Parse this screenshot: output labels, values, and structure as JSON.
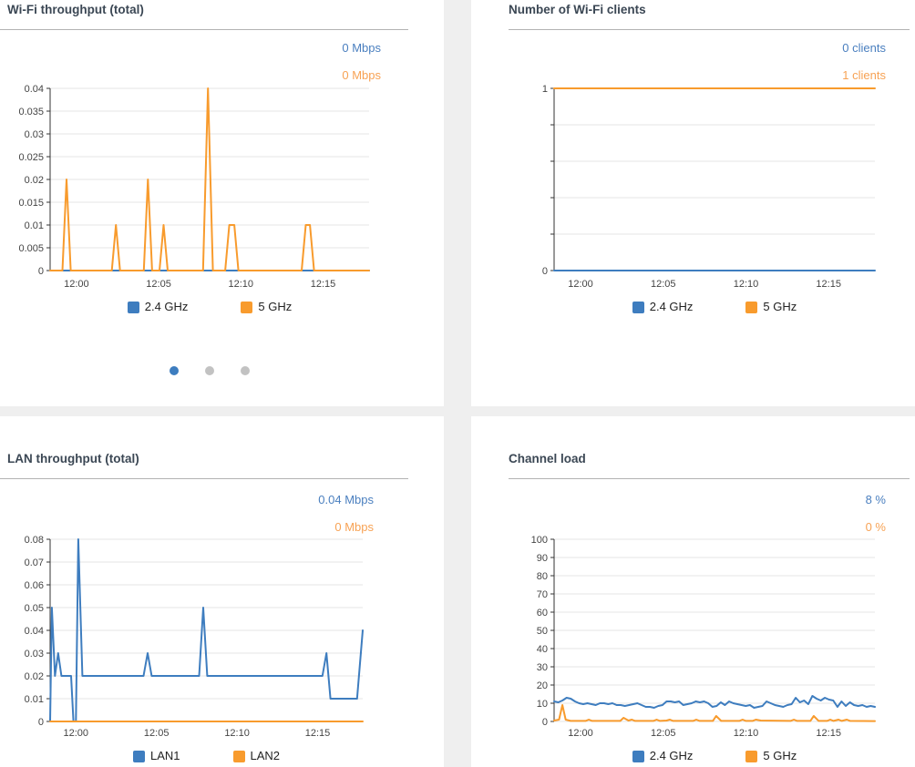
{
  "colors": {
    "page_bg": "#efefef",
    "card_bg": "#ffffff",
    "title": "#3b4754",
    "divider": "#b3b3b3",
    "grid": "#e4e4e4",
    "axis": "#333333",
    "tick_label": "#444444",
    "series_blue": "#3e7dbf",
    "series_orange": "#f89b2d",
    "value_blue": "#4a7fbf",
    "value_orange": "#f7a254",
    "dot_active": "#3d7dbf",
    "dot_inactive": "#c2c2c2"
  },
  "panels": [
    {
      "title": "Wi-Fi throughput (total)",
      "values": [
        {
          "text": "0 Mbps",
          "color": "#4a7fbf"
        },
        {
          "text": "0 Mbps",
          "color": "#f7a254"
        }
      ],
      "legend": [
        "2.4 GHz",
        "5 GHz"
      ],
      "pager": {
        "count": 3,
        "active": 0
      }
    },
    {
      "title": "Number of Wi-Fi clients",
      "values": [
        {
          "text": "0 clients",
          "color": "#4a7fbf"
        },
        {
          "text": "1 clients",
          "color": "#f7a254"
        }
      ],
      "legend": [
        "2.4 GHz",
        "5 GHz"
      ]
    },
    {
      "title": "LAN throughput (total)",
      "values": [
        {
          "text": "0.04 Mbps",
          "color": "#4a7fbf"
        },
        {
          "text": "0 Mbps",
          "color": "#f7a254"
        }
      ],
      "legend": [
        "LAN1",
        "LAN2"
      ]
    },
    {
      "title": "Channel load",
      "values": [
        {
          "text": "8 %",
          "color": "#4a7fbf"
        },
        {
          "text": "0 %",
          "color": "#f7a254"
        }
      ],
      "legend": [
        "2.4 GHz",
        "5 GHz"
      ]
    }
  ],
  "chart_data": [
    {
      "type": "line",
      "title": "Wi-Fi throughput (total)",
      "ylabel": "Mbps",
      "ylim": [
        0,
        0.04
      ],
      "x_range": [
        -1.6,
        17.8
      ],
      "grid": true,
      "y_ticks": [
        {
          "v": 0,
          "label": "0"
        },
        {
          "v": 0.005,
          "label": "0.005"
        },
        {
          "v": 0.01,
          "label": "0.01"
        },
        {
          "v": 0.015,
          "label": "0.015"
        },
        {
          "v": 0.02,
          "label": "0.02"
        },
        {
          "v": 0.025,
          "label": "0.025"
        },
        {
          "v": 0.03,
          "label": "0.03"
        },
        {
          "v": 0.035,
          "label": "0.035"
        },
        {
          "v": 0.04,
          "label": "0.04"
        }
      ],
      "x_ticks": [
        {
          "t": 0,
          "label": "12:00"
        },
        {
          "t": 5,
          "label": "12:05"
        },
        {
          "t": 10,
          "label": "12:10"
        },
        {
          "t": 15,
          "label": "12:15"
        }
      ],
      "series": [
        {
          "name": "2.4 GHz",
          "color": "#3e7dbf",
          "points": [
            [
              -1.6,
              0
            ],
            [
              17.8,
              0
            ]
          ]
        },
        {
          "name": "5 GHz",
          "color": "#f89b2d",
          "points": [
            [
              -1.6,
              0
            ],
            [
              -0.85,
              0
            ],
            [
              -0.6,
              0.02
            ],
            [
              -0.35,
              0
            ],
            [
              2.15,
              0
            ],
            [
              2.4,
              0.01
            ],
            [
              2.65,
              0
            ],
            [
              4.1,
              0
            ],
            [
              4.35,
              0.02
            ],
            [
              4.6,
              0
            ],
            [
              5.05,
              0
            ],
            [
              5.3,
              0.01
            ],
            [
              5.55,
              0
            ],
            [
              7.7,
              0
            ],
            [
              8.0,
              0.04
            ],
            [
              8.3,
              0
            ],
            [
              9.05,
              0
            ],
            [
              9.3,
              0.01
            ],
            [
              9.6,
              0.01
            ],
            [
              9.85,
              0
            ],
            [
              13.7,
              0
            ],
            [
              13.95,
              0.01
            ],
            [
              14.2,
              0.01
            ],
            [
              14.45,
              0
            ],
            [
              17.8,
              0
            ]
          ]
        }
      ]
    },
    {
      "type": "line",
      "title": "Number of Wi-Fi clients",
      "ylabel": "clients",
      "ylim": [
        0,
        1
      ],
      "x_range": [
        -1.6,
        17.8
      ],
      "grid": true,
      "y_ticks": [
        {
          "v": 0,
          "label": "0"
        },
        {
          "v": 1,
          "label": "1"
        }
      ],
      "y_minor": [
        0.2,
        0.4,
        0.6,
        0.8
      ],
      "x_ticks": [
        {
          "t": 0,
          "label": "12:00"
        },
        {
          "t": 5,
          "label": "12:05"
        },
        {
          "t": 10,
          "label": "12:10"
        },
        {
          "t": 15,
          "label": "12:15"
        }
      ],
      "series": [
        {
          "name": "2.4 GHz",
          "color": "#3e7dbf",
          "points": [
            [
              -1.6,
              0
            ],
            [
              17.8,
              0
            ]
          ]
        },
        {
          "name": "5 GHz",
          "color": "#f89b2d",
          "points": [
            [
              -1.6,
              1
            ],
            [
              17.8,
              1
            ]
          ]
        }
      ]
    },
    {
      "type": "line",
      "title": "LAN throughput (total)",
      "ylabel": "Mbps",
      "ylim": [
        0,
        0.08
      ],
      "x_range": [
        -1.6,
        17.8
      ],
      "grid": true,
      "y_ticks": [
        {
          "v": 0,
          "label": "0"
        },
        {
          "v": 0.01,
          "label": "0.01"
        },
        {
          "v": 0.02,
          "label": "0.02"
        },
        {
          "v": 0.03,
          "label": "0.03"
        },
        {
          "v": 0.04,
          "label": "0.04"
        },
        {
          "v": 0.05,
          "label": "0.05"
        },
        {
          "v": 0.06,
          "label": "0.06"
        },
        {
          "v": 0.07,
          "label": "0.07"
        },
        {
          "v": 0.08,
          "label": "0.08"
        }
      ],
      "x_ticks": [
        {
          "t": 0,
          "label": "12:00"
        },
        {
          "t": 5,
          "label": "12:05"
        },
        {
          "t": 10,
          "label": "12:10"
        },
        {
          "t": 15,
          "label": "12:15"
        }
      ],
      "series": [
        {
          "name": "LAN1",
          "color": "#3e7dbf",
          "points": [
            [
              -1.6,
              0
            ],
            [
              -1.49,
              0.05
            ],
            [
              -1.3,
              0.02
            ],
            [
              -1.1,
              0.03
            ],
            [
              -0.9,
              0.02
            ],
            [
              -0.3,
              0.02
            ],
            [
              -0.15,
              0
            ],
            [
              0.0,
              0
            ],
            [
              0.15,
              0.08
            ],
            [
              0.4,
              0.02
            ],
            [
              4.2,
              0.02
            ],
            [
              4.45,
              0.03
            ],
            [
              4.7,
              0.02
            ],
            [
              7.65,
              0.02
            ],
            [
              7.9,
              0.05
            ],
            [
              8.15,
              0.02
            ],
            [
              15.3,
              0.02
            ],
            [
              15.55,
              0.03
            ],
            [
              15.8,
              0.01
            ],
            [
              17.45,
              0.01
            ],
            [
              17.8,
              0.04
            ]
          ]
        },
        {
          "name": "LAN2",
          "color": "#f89b2d",
          "points": [
            [
              -1.6,
              0
            ],
            [
              17.8,
              0
            ]
          ]
        }
      ]
    },
    {
      "type": "line",
      "title": "Channel load",
      "ylabel": "%",
      "ylim": [
        0,
        100
      ],
      "x_range": [
        -1.6,
        17.8
      ],
      "grid": true,
      "y_ticks": [
        {
          "v": 0,
          "label": "0"
        },
        {
          "v": 10,
          "label": "10"
        },
        {
          "v": 20,
          "label": "20"
        },
        {
          "v": 30,
          "label": "30"
        },
        {
          "v": 40,
          "label": "40"
        },
        {
          "v": 50,
          "label": "50"
        },
        {
          "v": 60,
          "label": "60"
        },
        {
          "v": 70,
          "label": "70"
        },
        {
          "v": 80,
          "label": "80"
        },
        {
          "v": 90,
          "label": "90"
        },
        {
          "v": 100,
          "label": "100"
        }
      ],
      "x_ticks": [
        {
          "t": 0,
          "label": "12:00"
        },
        {
          "t": 5,
          "label": "12:05"
        },
        {
          "t": 10,
          "label": "12:10"
        },
        {
          "t": 15,
          "label": "12:15"
        }
      ],
      "series": [
        {
          "name": "2.4 GHz",
          "color": "#3e7dbf",
          "values": [
            11,
            10.5,
            11.5,
            13,
            12.5,
            11,
            10,
            9.5,
            10,
            9.5,
            9,
            10,
            10,
            9.5,
            10,
            9,
            9,
            8.5,
            9,
            9.5,
            10,
            9,
            8,
            8,
            7.5,
            8.5,
            9,
            11,
            11,
            10.5,
            11,
            9,
            9.5,
            10,
            11,
            10.5,
            11,
            10,
            8,
            8.5,
            10.5,
            9,
            11,
            10,
            9.5,
            9,
            8.5,
            9,
            7.5,
            8,
            8.5,
            11,
            10,
            9,
            8.5,
            8,
            9,
            9.5,
            13,
            10.5,
            11.5,
            9.5,
            14,
            12.5,
            11.5,
            13,
            12,
            11.5,
            8,
            11,
            8.5,
            10.5,
            9,
            8.5,
            9,
            8,
            8.5,
            8
          ]
        },
        {
          "name": "5 GHz",
          "color": "#f89b2d",
          "points": [
            [
              -1.6,
              0.5
            ],
            [
              -1.3,
              1
            ],
            [
              -1.1,
              9
            ],
            [
              -0.9,
              1
            ],
            [
              -0.6,
              0.3
            ],
            [
              0.3,
              0.3
            ],
            [
              0.5,
              1
            ],
            [
              0.7,
              0.3
            ],
            [
              2.4,
              0.3
            ],
            [
              2.6,
              2
            ],
            [
              2.9,
              0.5
            ],
            [
              3.1,
              1
            ],
            [
              3.3,
              0.3
            ],
            [
              4.4,
              0.3
            ],
            [
              4.6,
              1
            ],
            [
              4.8,
              0.3
            ],
            [
              5.2,
              0.5
            ],
            [
              5.4,
              1
            ],
            [
              5.6,
              0.3
            ],
            [
              6.8,
              0.3
            ],
            [
              7.0,
              1
            ],
            [
              7.2,
              0.3
            ],
            [
              8.0,
              0.3
            ],
            [
              8.2,
              3
            ],
            [
              8.5,
              0.3
            ],
            [
              9.6,
              0.3
            ],
            [
              9.8,
              1
            ],
            [
              10.0,
              0.3
            ],
            [
              10.4,
              0.3
            ],
            [
              10.6,
              1
            ],
            [
              10.9,
              0.5
            ],
            [
              12.7,
              0.3
            ],
            [
              12.9,
              1
            ],
            [
              13.1,
              0.3
            ],
            [
              13.9,
              0.3
            ],
            [
              14.1,
              3
            ],
            [
              14.4,
              0.3
            ],
            [
              14.9,
              0.3
            ],
            [
              15.1,
              1
            ],
            [
              15.3,
              0.3
            ],
            [
              15.6,
              1
            ],
            [
              15.8,
              0.3
            ],
            [
              16.1,
              1
            ],
            [
              16.3,
              0.3
            ],
            [
              17.8,
              0.2
            ]
          ]
        }
      ]
    }
  ]
}
